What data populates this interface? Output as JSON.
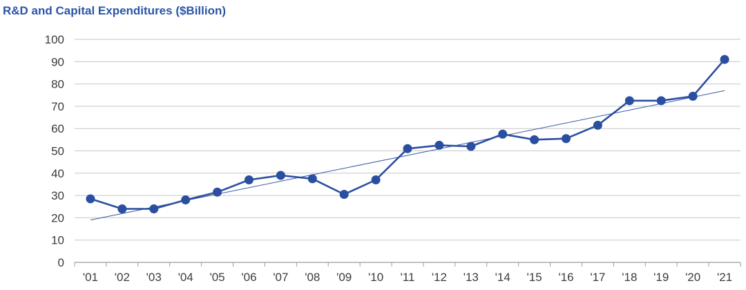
{
  "chart_data": {
    "type": "line",
    "title": "R&D and Capital Expenditures ($Billion)",
    "xlabel": "",
    "ylabel": "",
    "categories": [
      "'01",
      "'02",
      "'03",
      "'04",
      "'05",
      "'06",
      "'07",
      "'08",
      "'09",
      "'10",
      "'11",
      "'12",
      "'13",
      "'14",
      "'15",
      "'16",
      "'17",
      "'18",
      "'19",
      "'20",
      "'21"
    ],
    "series": [
      {
        "values": [
          28.5,
          24,
          24,
          28,
          31.5,
          37,
          39,
          37.5,
          30.5,
          37,
          51,
          52.5,
          52,
          57.5,
          55,
          55.5,
          61.5,
          72.5,
          72.5,
          74.5,
          91
        ]
      }
    ],
    "trendline": {
      "type": "linear",
      "start": 19,
      "end": 77
    },
    "ylim": [
      0,
      100
    ],
    "yticks": [
      0,
      10,
      20,
      30,
      40,
      50,
      60,
      70,
      80,
      90,
      100
    ],
    "grid": true,
    "legend": "none",
    "colors": {
      "series": "#2a4ea0",
      "trend": "#3557a6",
      "grid": "#c6c6c6",
      "axis": "#9a9a9a",
      "title": "#2a54a8"
    }
  }
}
